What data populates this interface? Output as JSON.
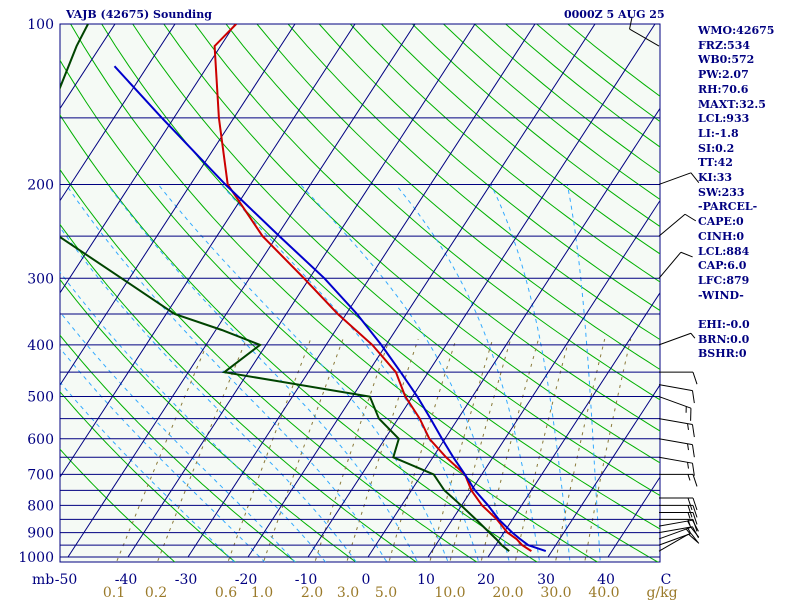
{
  "header": {
    "title": "VAJB (42675) Sounding",
    "time": "0000Z  5 AUG 25"
  },
  "indices": [
    "WMO:42675",
    "FRZ:534",
    "WB0:572",
    "PW:2.07",
    "RH:70.6",
    "MAXT:32.5",
    "LCL:933",
    "LI:-1.8",
    "SI:0.2",
    "TT:42",
    "KI:33",
    "SW:233",
    "-PARCEL-",
    "CAPE:0",
    "CINH:0",
    "LCL:884",
    "CAP:6.0",
    "LFC:879",
    "-WIND-",
    "",
    "EHI:-0.0",
    "BRN:0.0",
    "BSHR:0"
  ],
  "colors": {
    "background": "#f5faf5",
    "isobar": "#000080",
    "isotherm": "#000080",
    "dry_adiabat": "#00b000",
    "moist_adiabat": "#33aaff",
    "mixing_ratio": "#8a7a3a",
    "temperature": "#cc0000",
    "dewpoint": "#004400",
    "parcel": "#0000cc",
    "text": "#000080",
    "mixing_ratio_text": "#9a7a2a"
  },
  "chart_data": {
    "type": "skew-t",
    "title": "VAJB (42675) Sounding",
    "xlabel": "",
    "ylabel": "mb",
    "pressure_ticks": [
      "100",
      "200",
      "300",
      "400",
      "500",
      "600",
      "700",
      "800",
      "900",
      "1000"
    ],
    "temperature_ticks": [
      "-50",
      "-40",
      "-30",
      "-20",
      "-10",
      "0",
      "10",
      "20",
      "30",
      "40",
      "C"
    ],
    "mixing_ratio_ticks": [
      "0.1",
      "0.2",
      "0.6",
      "1.0",
      "2.0",
      "3.0",
      "5.0",
      "10.0",
      "20.0",
      "30.0",
      "40.0",
      "g/kg"
    ],
    "ylim": [
      1000,
      100
    ],
    "xlim": [
      -50,
      50
    ],
    "series": [
      {
        "key": "temperature",
        "p": [
          975,
          950,
          925,
          900,
          850,
          800,
          750,
          700,
          650,
          600,
          550,
          500,
          450,
          400,
          350,
          300,
          250,
          200,
          150,
          110,
          100
        ],
        "t": [
          26.6,
          24.4,
          22.8,
          20.6,
          17.4,
          13.4,
          10.0,
          7.2,
          2.2,
          -2.6,
          -6.4,
          -11.2,
          -15.4,
          -22.3,
          -31.4,
          -40.9,
          -52.4,
          -63.8,
          -72.5,
          -81.0,
          -79.8
        ]
      },
      {
        "key": "dewpoint",
        "p": [
          975,
          950,
          925,
          900,
          850,
          800,
          750,
          700,
          650,
          600,
          550,
          500,
          450,
          400,
          375,
          350,
          300,
          250,
          210,
          200,
          150,
          110,
          100
        ],
        "t": [
          22.9,
          21.0,
          19.4,
          17.6,
          13.9,
          9.9,
          5.5,
          2.0,
          -6.6,
          -7.7,
          -13.2,
          -17.1,
          -44.0,
          -41.0,
          -49.0,
          -58.6,
          -71.3,
          -86.4,
          -91.6,
          -92.8,
          -101.0,
          -104.0,
          -104.5
        ]
      },
      {
        "key": "parcel",
        "p": [
          975,
          950,
          925,
          900,
          850,
          800,
          750,
          700,
          650,
          600,
          550,
          500,
          450,
          400,
          350,
          300,
          250,
          200,
          150,
          120
        ],
        "t": [
          29.0,
          25.4,
          23.4,
          21.4,
          17.7,
          14.4,
          10.6,
          7.2,
          3.4,
          -0.5,
          -4.6,
          -9.2,
          -14.6,
          -20.8,
          -28.2,
          -37.5,
          -49.6,
          -64.2,
          -82.0,
          -95.5
        ]
      }
    ],
    "wind_barbs": [
      {
        "p": 975,
        "dir": 240,
        "spd": 10
      },
      {
        "p": 950,
        "dir": 250,
        "spd": 10
      },
      {
        "p": 925,
        "dir": 250,
        "spd": 15
      },
      {
        "p": 900,
        "dir": 260,
        "spd": 15
      },
      {
        "p": 875,
        "dir": 260,
        "spd": 15
      },
      {
        "p": 850,
        "dir": 270,
        "spd": 15
      },
      {
        "p": 825,
        "dir": 270,
        "spd": 15
      },
      {
        "p": 800,
        "dir": 270,
        "spd": 20
      },
      {
        "p": 775,
        "dir": 270,
        "spd": 20
      },
      {
        "p": 700,
        "dir": 270,
        "spd": 15
      },
      {
        "p": 650,
        "dir": 280,
        "spd": 15
      },
      {
        "p": 600,
        "dir": 280,
        "spd": 15
      },
      {
        "p": 550,
        "dir": 280,
        "spd": 15
      },
      {
        "p": 500,
        "dir": 290,
        "spd": 15
      },
      {
        "p": 475,
        "dir": 280,
        "spd": 10
      },
      {
        "p": 450,
        "dir": 270,
        "spd": 10
      },
      {
        "p": 400,
        "dir": 250,
        "spd": 5
      },
      {
        "p": 300,
        "dir": 220,
        "spd": 10
      },
      {
        "p": 250,
        "dir": 230,
        "spd": 10
      },
      {
        "p": 200,
        "dir": 250,
        "spd": 10
      },
      {
        "p": 110,
        "dir": 120,
        "spd": 10
      }
    ]
  }
}
